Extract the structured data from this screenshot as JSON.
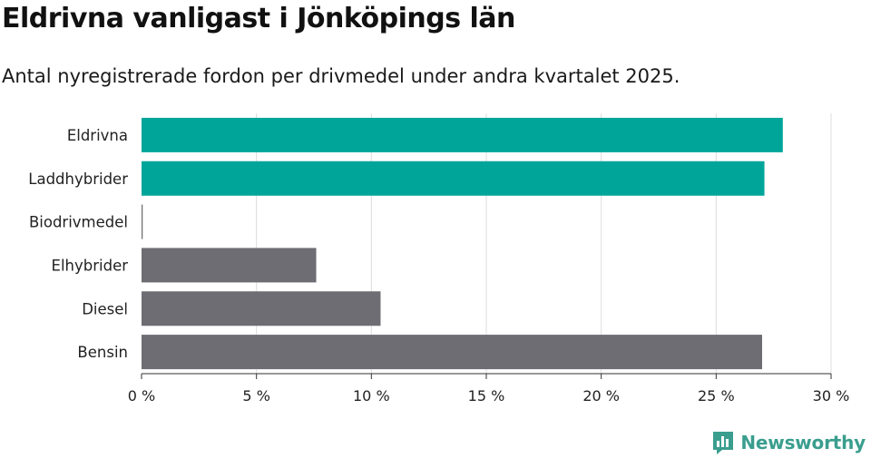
{
  "title": "Eldrivna vanligast i Jönköpings län",
  "subtitle": "Antal nyregistrerade fordon per drivmedel under andra kvartalet 2025.",
  "brand": {
    "name": "Newsworthy",
    "icon": "newsworthy-logo-icon",
    "color": "#3a9e8e"
  },
  "chart_data": {
    "type": "bar",
    "orientation": "horizontal",
    "categories": [
      "Eldrivna",
      "Laddhybrider",
      "Biodrivmedel",
      "Elhybrider",
      "Diesel",
      "Bensin"
    ],
    "values": [
      27.9,
      27.1,
      0.05,
      7.6,
      10.4,
      27.0
    ],
    "colors": [
      "#00a59a",
      "#00a59a",
      "#6d6d73",
      "#6d6d73",
      "#6d6d73",
      "#6d6d73"
    ],
    "xlim": [
      0,
      30
    ],
    "xticks": [
      0,
      5,
      10,
      15,
      20,
      25,
      30
    ],
    "xtick_labels": [
      "0 %",
      "5 %",
      "10 %",
      "15 %",
      "20 %",
      "25 %",
      "30 %"
    ],
    "grid": true
  }
}
